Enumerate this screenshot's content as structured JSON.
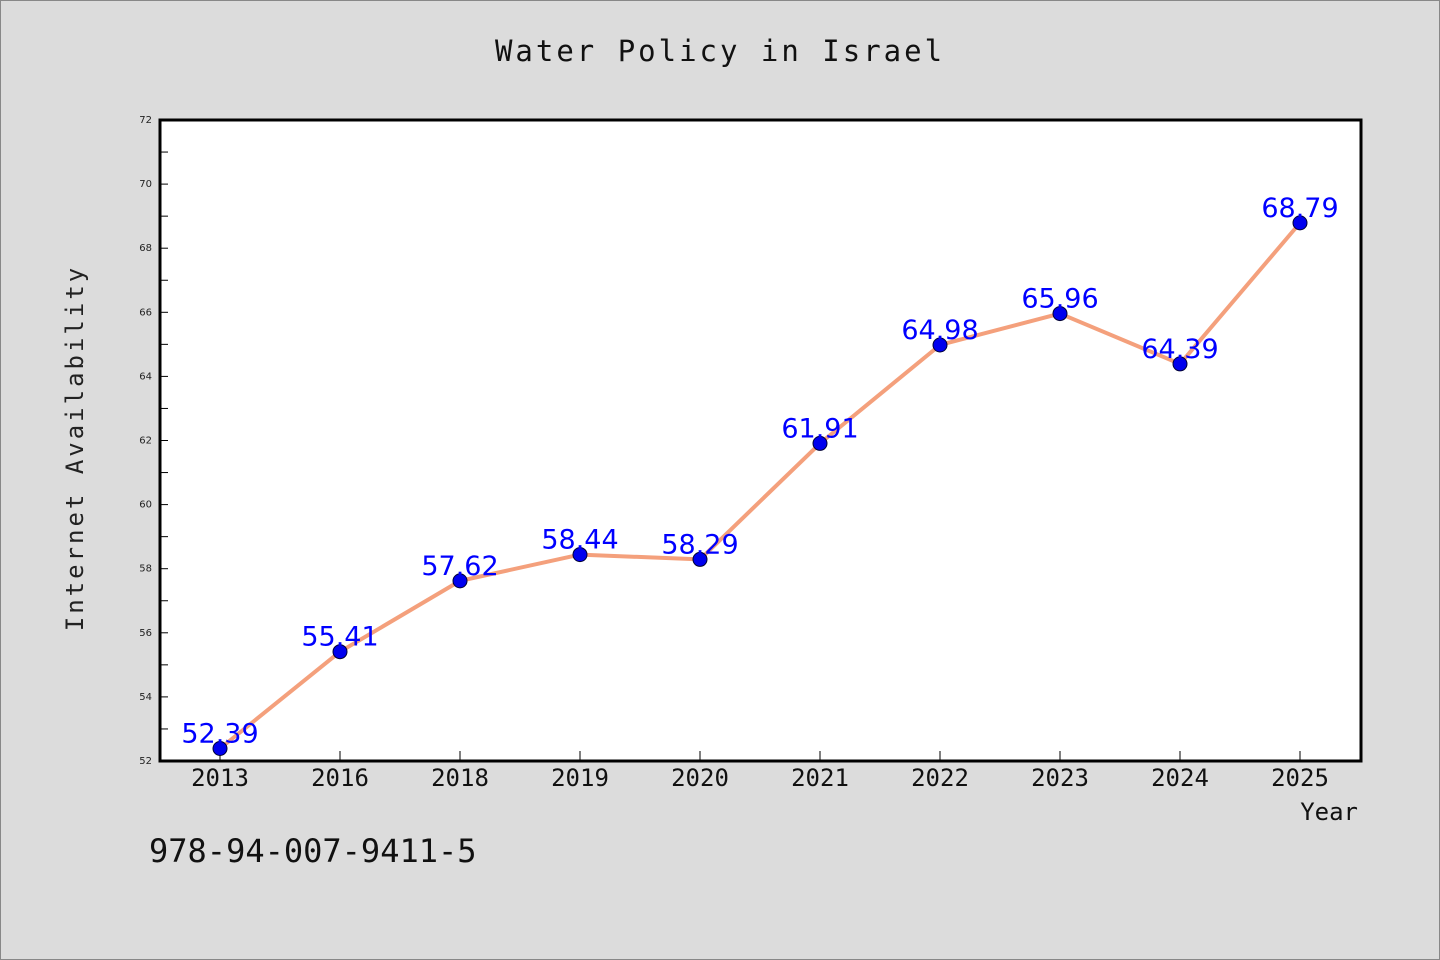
{
  "chart_data": {
    "type": "line",
    "title": "Water Policy in Israel",
    "xlabel": "Year",
    "ylabel": "Internet Availability",
    "categories": [
      "2013",
      "2016",
      "2018",
      "2019",
      "2020",
      "2021",
      "2022",
      "2023",
      "2024",
      "2025"
    ],
    "values": [
      52.39,
      55.41,
      57.62,
      58.44,
      58.29,
      61.91,
      64.98,
      65.96,
      64.39,
      68.79
    ],
    "data_labels": [
      "52.39",
      "55.41",
      "57.62",
      "58.44",
      "58.29",
      "61.91",
      "64.98",
      "65.96",
      "64.39",
      "68.79"
    ],
    "ylim": [
      52,
      72
    ],
    "yticks": [
      52,
      54,
      56,
      58,
      60,
      62,
      64,
      66,
      68,
      70,
      72
    ],
    "grid": false,
    "legend": "none",
    "colors": {
      "line": "#f4a07c",
      "marker": "#0000ee",
      "label": "#0000ff",
      "plot_bg": "#ffffff",
      "page_bg": "#dcdcdc"
    }
  },
  "footer": {
    "isbn": "978-94-007-9411-5"
  }
}
